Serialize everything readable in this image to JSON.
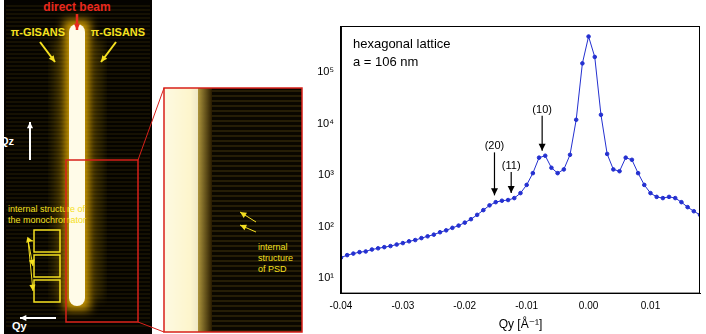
{
  "chart_data": {
    "type": "line",
    "x_label": "Qy [Å⁻¹]",
    "x": [
      -0.04,
      -0.039,
      -0.038,
      -0.037,
      -0.036,
      -0.035,
      -0.034,
      -0.033,
      -0.032,
      -0.031,
      -0.03,
      -0.029,
      -0.028,
      -0.027,
      -0.026,
      -0.025,
      -0.024,
      -0.023,
      -0.022,
      -0.021,
      -0.02,
      -0.019,
      -0.018,
      -0.017,
      -0.016,
      -0.015,
      -0.014,
      -0.013,
      -0.012,
      -0.011,
      -0.01,
      -0.009,
      -0.008,
      -0.007,
      -0.006,
      -0.005,
      -0.004,
      -0.003,
      -0.002,
      -0.001,
      0.0,
      0.001,
      0.002,
      0.003,
      0.004,
      0.005,
      0.006,
      0.007,
      0.008,
      0.009,
      0.01,
      0.011,
      0.012,
      0.013,
      0.014,
      0.015,
      0.016,
      0.017,
      0.018
    ],
    "values": [
      25,
      28,
      30,
      32,
      33,
      36,
      38,
      40,
      42,
      45,
      48,
      52,
      55,
      60,
      65,
      70,
      78,
      85,
      95,
      105,
      120,
      140,
      170,
      210,
      260,
      300,
      320,
      330,
      360,
      450,
      650,
      1100,
      2200,
      2400,
      1400,
      1100,
      1300,
      2500,
      12000,
      150000,
      500000,
      200000,
      15000,
      2600,
      1300,
      1200,
      2200,
      2000,
      1100,
      650,
      450,
      380,
      360,
      380,
      360,
      300,
      240,
      200,
      170
    ],
    "color": "#2430d0",
    "marker": "circle",
    "line_style": "solid",
    "log": "y",
    "grid": false,
    "xlim": [
      -0.04,
      0.018
    ],
    "xticks": [
      -0.04,
      -0.03,
      -0.02,
      -0.01,
      {
        "value": 0,
        "label": "0.00"
      },
      0.01
    ],
    "ylim": [
      5,
      800000
    ],
    "yticks": [
      {
        "value": 10,
        "label": "10¹"
      },
      {
        "value": 100,
        "label": "10²"
      },
      {
        "value": 1000,
        "label": "10³"
      },
      {
        "value": 10000,
        "label": "10⁴"
      },
      {
        "value": 100000,
        "label": "10⁵"
      }
    ],
    "annotations": [
      {
        "text": "hexagonal lattice"
      },
      {
        "text": "a = 106 nm"
      },
      {
        "text": "(10)",
        "x": -0.0075,
        "y": 2500
      },
      {
        "text": "(11)",
        "x": -0.0125,
        "y": 380
      },
      {
        "text": "(20)",
        "x": -0.0152,
        "y": 340
      }
    ]
  },
  "detector_image": {
    "direct_beam": "direct beam",
    "pi_gisans_left": "π-GISANS",
    "pi_gisans_right": "π-GISANS",
    "qz": "Qz",
    "qy": "Qy",
    "monochromator_label": [
      "internal structure of",
      "the monochromator"
    ]
  },
  "zoom_inset": {
    "psd_label": [
      "internal",
      "structure",
      "of PSD"
    ]
  }
}
